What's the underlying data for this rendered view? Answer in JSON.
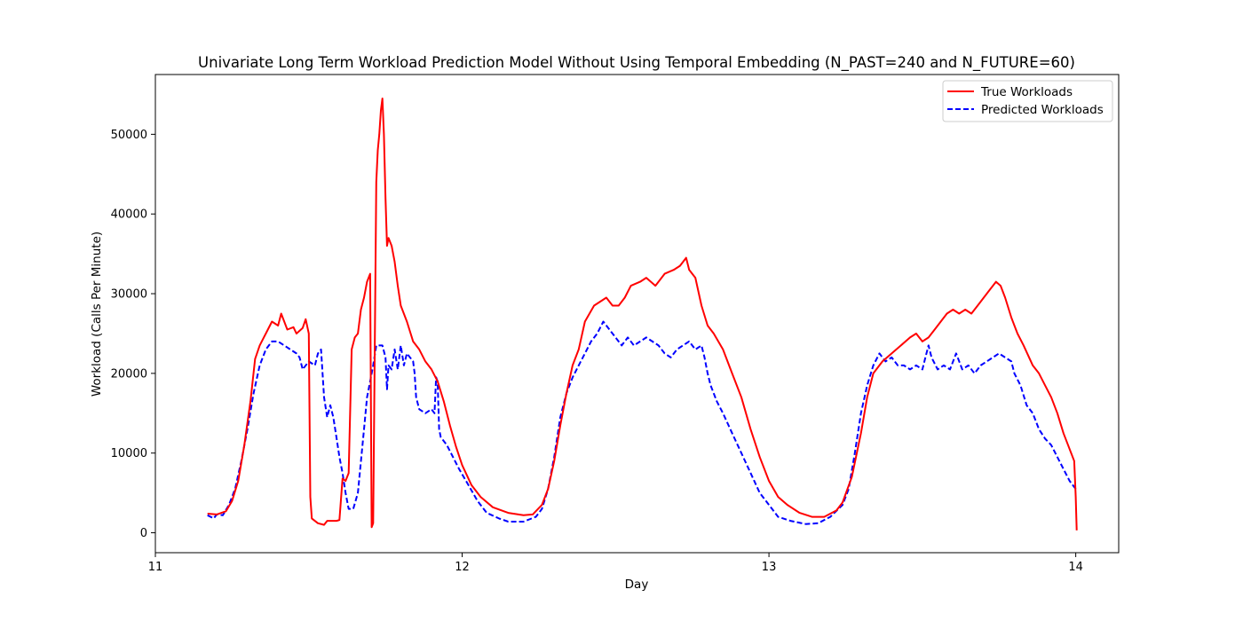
{
  "chart_data": {
    "type": "line",
    "title": "Univariate Long Term Workload Prediction Model Without Using Temporal Embedding (N_PAST=240 and N_FUTURE=60)",
    "xlabel": "Day",
    "ylabel": "Workload (Calls Per Minute)",
    "xlim": [
      11.0,
      14.14
    ],
    "ylim": [
      -2500,
      57500
    ],
    "xticks": [
      11,
      12,
      13,
      14
    ],
    "xtick_labels": [
      "11",
      "12",
      "13",
      "14"
    ],
    "yticks": [
      0,
      10000,
      20000,
      30000,
      40000,
      50000
    ],
    "ytick_labels": [
      "0",
      "10000",
      "20000",
      "30000",
      "40000",
      "50000"
    ],
    "grid": false,
    "legend_position": "top-right",
    "series": [
      {
        "name": "True Workloads",
        "color": "#ff0000",
        "style": "solid",
        "points": [
          [
            11.17,
            2400
          ],
          [
            11.2,
            2300
          ],
          [
            11.23,
            2700
          ],
          [
            11.25,
            4000
          ],
          [
            11.27,
            6500
          ],
          [
            11.29,
            11000
          ],
          [
            11.31,
            16500
          ],
          [
            11.325,
            21800
          ],
          [
            11.34,
            23500
          ],
          [
            11.36,
            25000
          ],
          [
            11.38,
            26500
          ],
          [
            11.4,
            26000
          ],
          [
            11.41,
            27500
          ],
          [
            11.43,
            25500
          ],
          [
            11.45,
            25800
          ],
          [
            11.46,
            25000
          ],
          [
            11.48,
            25700
          ],
          [
            11.49,
            26800
          ],
          [
            11.5,
            25000
          ],
          [
            11.505,
            4500
          ],
          [
            11.51,
            1800
          ],
          [
            11.53,
            1200
          ],
          [
            11.55,
            1000
          ],
          [
            11.56,
            1500
          ],
          [
            11.59,
            1500
          ],
          [
            11.6,
            1600
          ],
          [
            11.61,
            6800
          ],
          [
            11.62,
            6500
          ],
          [
            11.63,
            7500
          ],
          [
            11.64,
            23000
          ],
          [
            11.65,
            24500
          ],
          [
            11.66,
            25000
          ],
          [
            11.67,
            28000
          ],
          [
            11.68,
            29500
          ],
          [
            11.69,
            31500
          ],
          [
            11.7,
            32500
          ],
          [
            11.705,
            700
          ],
          [
            11.71,
            1200
          ],
          [
            11.72,
            44000
          ],
          [
            11.725,
            48000
          ],
          [
            11.73,
            50000
          ],
          [
            11.735,
            53000
          ],
          [
            11.74,
            54500
          ],
          [
            11.745,
            50000
          ],
          [
            11.75,
            42000
          ],
          [
            11.755,
            36000
          ],
          [
            11.76,
            37000
          ],
          [
            11.77,
            36000
          ],
          [
            11.78,
            34000
          ],
          [
            11.79,
            31000
          ],
          [
            11.8,
            28500
          ],
          [
            11.82,
            26500
          ],
          [
            11.84,
            24000
          ],
          [
            11.86,
            23000
          ],
          [
            11.88,
            21500
          ],
          [
            11.9,
            20500
          ],
          [
            11.92,
            19000
          ],
          [
            11.94,
            16500
          ],
          [
            11.96,
            13500
          ],
          [
            11.98,
            10800
          ],
          [
            12.0,
            8500
          ],
          [
            12.03,
            6000
          ],
          [
            12.06,
            4500
          ],
          [
            12.1,
            3200
          ],
          [
            12.15,
            2500
          ],
          [
            12.2,
            2200
          ],
          [
            12.23,
            2300
          ],
          [
            12.26,
            3500
          ],
          [
            12.28,
            5500
          ],
          [
            12.3,
            9000
          ],
          [
            12.32,
            13500
          ],
          [
            12.34,
            17500
          ],
          [
            12.36,
            21000
          ],
          [
            12.38,
            23000
          ],
          [
            12.4,
            26500
          ],
          [
            12.43,
            28500
          ],
          [
            12.45,
            29000
          ],
          [
            12.47,
            29500
          ],
          [
            12.49,
            28500
          ],
          [
            12.51,
            28500
          ],
          [
            12.53,
            29500
          ],
          [
            12.55,
            31000
          ],
          [
            12.58,
            31500
          ],
          [
            12.6,
            32000
          ],
          [
            12.63,
            31000
          ],
          [
            12.66,
            32500
          ],
          [
            12.69,
            33000
          ],
          [
            12.71,
            33500
          ],
          [
            12.73,
            34500
          ],
          [
            12.74,
            33000
          ],
          [
            12.76,
            32000
          ],
          [
            12.78,
            28500
          ],
          [
            12.8,
            26000
          ],
          [
            12.82,
            25000
          ],
          [
            12.85,
            23000
          ],
          [
            12.88,
            20000
          ],
          [
            12.91,
            17000
          ],
          [
            12.94,
            13000
          ],
          [
            12.97,
            9500
          ],
          [
            13.0,
            6500
          ],
          [
            13.03,
            4500
          ],
          [
            13.06,
            3500
          ],
          [
            13.1,
            2500
          ],
          [
            13.14,
            2000
          ],
          [
            13.18,
            2000
          ],
          [
            13.22,
            2800
          ],
          [
            13.24,
            3800
          ],
          [
            13.27,
            7000
          ],
          [
            13.3,
            12500
          ],
          [
            13.32,
            17000
          ],
          [
            13.34,
            20000
          ],
          [
            13.37,
            21500
          ],
          [
            13.4,
            22500
          ],
          [
            13.43,
            23500
          ],
          [
            13.46,
            24500
          ],
          [
            13.48,
            25000
          ],
          [
            13.5,
            24000
          ],
          [
            13.52,
            24500
          ],
          [
            13.54,
            25500
          ],
          [
            13.56,
            26500
          ],
          [
            13.58,
            27500
          ],
          [
            13.6,
            28000
          ],
          [
            13.62,
            27500
          ],
          [
            13.64,
            28000
          ],
          [
            13.66,
            27500
          ],
          [
            13.68,
            28500
          ],
          [
            13.7,
            29500
          ],
          [
            13.72,
            30500
          ],
          [
            13.74,
            31500
          ],
          [
            13.755,
            31000
          ],
          [
            13.77,
            29500
          ],
          [
            13.79,
            27000
          ],
          [
            13.81,
            25000
          ],
          [
            13.83,
            23500
          ],
          [
            13.86,
            21000
          ],
          [
            13.88,
            20000
          ],
          [
            13.9,
            18500
          ],
          [
            13.92,
            17000
          ],
          [
            13.94,
            15000
          ],
          [
            13.96,
            12500
          ],
          [
            13.98,
            10500
          ],
          [
            13.995,
            9000
          ],
          [
            14.0,
            4500
          ],
          [
            14.003,
            300
          ]
        ]
      },
      {
        "name": "Predicted Workloads",
        "color": "#0000ff",
        "style": "dashed",
        "points": [
          [
            11.17,
            2200
          ],
          [
            11.19,
            1800
          ],
          [
            11.2,
            2300
          ],
          [
            11.22,
            2200
          ],
          [
            11.24,
            3500
          ],
          [
            11.26,
            5500
          ],
          [
            11.28,
            9000
          ],
          [
            11.3,
            13000
          ],
          [
            11.32,
            17500
          ],
          [
            11.34,
            21000
          ],
          [
            11.36,
            23000
          ],
          [
            11.38,
            24000
          ],
          [
            11.4,
            24000
          ],
          [
            11.42,
            23500
          ],
          [
            11.44,
            23000
          ],
          [
            11.46,
            22500
          ],
          [
            11.47,
            22000
          ],
          [
            11.48,
            20500
          ],
          [
            11.5,
            21500
          ],
          [
            11.52,
            21000
          ],
          [
            11.53,
            22500
          ],
          [
            11.54,
            23000
          ],
          [
            11.55,
            17000
          ],
          [
            11.56,
            14500
          ],
          [
            11.57,
            16000
          ],
          [
            11.58,
            14500
          ],
          [
            11.59,
            12000
          ],
          [
            11.6,
            9500
          ],
          [
            11.61,
            7500
          ],
          [
            11.62,
            5000
          ],
          [
            11.63,
            3000
          ],
          [
            11.645,
            3000
          ],
          [
            11.66,
            5000
          ],
          [
            11.68,
            13000
          ],
          [
            11.69,
            17000
          ],
          [
            11.7,
            19000
          ],
          [
            11.71,
            21000
          ],
          [
            11.72,
            23500
          ],
          [
            11.74,
            23500
          ],
          [
            11.75,
            22000
          ],
          [
            11.755,
            18000
          ],
          [
            11.76,
            21000
          ],
          [
            11.77,
            20500
          ],
          [
            11.78,
            23000
          ],
          [
            11.79,
            20500
          ],
          [
            11.8,
            23500
          ],
          [
            11.81,
            21000
          ],
          [
            11.82,
            22500
          ],
          [
            11.84,
            21500
          ],
          [
            11.845,
            20000
          ],
          [
            11.85,
            17000
          ],
          [
            11.86,
            15500
          ],
          [
            11.88,
            15000
          ],
          [
            11.9,
            15500
          ],
          [
            11.91,
            15000
          ],
          [
            11.915,
            19500
          ],
          [
            11.92,
            19000
          ],
          [
            11.925,
            13000
          ],
          [
            11.93,
            12000
          ],
          [
            11.95,
            11000
          ],
          [
            11.97,
            9500
          ],
          [
            11.99,
            8000
          ],
          [
            12.02,
            6000
          ],
          [
            12.05,
            4000
          ],
          [
            12.08,
            2500
          ],
          [
            12.12,
            1800
          ],
          [
            12.15,
            1400
          ],
          [
            12.2,
            1400
          ],
          [
            12.24,
            2000
          ],
          [
            12.26,
            3000
          ],
          [
            12.28,
            5500
          ],
          [
            12.3,
            9500
          ],
          [
            12.32,
            14500
          ],
          [
            12.34,
            17500
          ],
          [
            12.36,
            19500
          ],
          [
            12.38,
            21000
          ],
          [
            12.4,
            22500
          ],
          [
            12.42,
            24000
          ],
          [
            12.44,
            25000
          ],
          [
            12.46,
            26500
          ],
          [
            12.48,
            25500
          ],
          [
            12.5,
            24500
          ],
          [
            12.52,
            23500
          ],
          [
            12.54,
            24500
          ],
          [
            12.56,
            23500
          ],
          [
            12.58,
            24000
          ],
          [
            12.6,
            24500
          ],
          [
            12.62,
            24000
          ],
          [
            12.64,
            23500
          ],
          [
            12.66,
            22500
          ],
          [
            12.68,
            22000
          ],
          [
            12.7,
            23000
          ],
          [
            12.72,
            23500
          ],
          [
            12.74,
            24000
          ],
          [
            12.76,
            23000
          ],
          [
            12.78,
            23500
          ],
          [
            12.79,
            22000
          ],
          [
            12.8,
            20000
          ],
          [
            12.81,
            18500
          ],
          [
            12.83,
            16500
          ],
          [
            12.85,
            15000
          ],
          [
            12.88,
            12500
          ],
          [
            12.91,
            10000
          ],
          [
            12.94,
            7500
          ],
          [
            12.97,
            5000
          ],
          [
            13.0,
            3500
          ],
          [
            13.03,
            2000
          ],
          [
            13.07,
            1500
          ],
          [
            13.12,
            1100
          ],
          [
            13.16,
            1200
          ],
          [
            13.2,
            2000
          ],
          [
            13.24,
            3500
          ],
          [
            13.26,
            5500
          ],
          [
            13.28,
            10000
          ],
          [
            13.3,
            15000
          ],
          [
            13.32,
            18500
          ],
          [
            13.34,
            21000
          ],
          [
            13.36,
            22500
          ],
          [
            13.38,
            21500
          ],
          [
            13.4,
            22000
          ],
          [
            13.42,
            21000
          ],
          [
            13.44,
            21000
          ],
          [
            13.46,
            20500
          ],
          [
            13.48,
            21000
          ],
          [
            13.5,
            20500
          ],
          [
            13.51,
            22000
          ],
          [
            13.52,
            23500
          ],
          [
            13.53,
            22000
          ],
          [
            13.55,
            20500
          ],
          [
            13.57,
            21000
          ],
          [
            13.59,
            20500
          ],
          [
            13.61,
            22500
          ],
          [
            13.63,
            20500
          ],
          [
            13.65,
            21000
          ],
          [
            13.67,
            20000
          ],
          [
            13.69,
            21000
          ],
          [
            13.71,
            21500
          ],
          [
            13.73,
            22000
          ],
          [
            13.75,
            22500
          ],
          [
            13.77,
            22000
          ],
          [
            13.79,
            21500
          ],
          [
            13.8,
            20000
          ],
          [
            13.82,
            18500
          ],
          [
            13.84,
            16000
          ],
          [
            13.86,
            15000
          ],
          [
            13.88,
            13000
          ],
          [
            13.9,
            11800
          ],
          [
            13.92,
            11000
          ],
          [
            13.94,
            9500
          ],
          [
            13.96,
            8000
          ],
          [
            13.98,
            6500
          ],
          [
            14.0,
            5500
          ]
        ]
      }
    ]
  }
}
